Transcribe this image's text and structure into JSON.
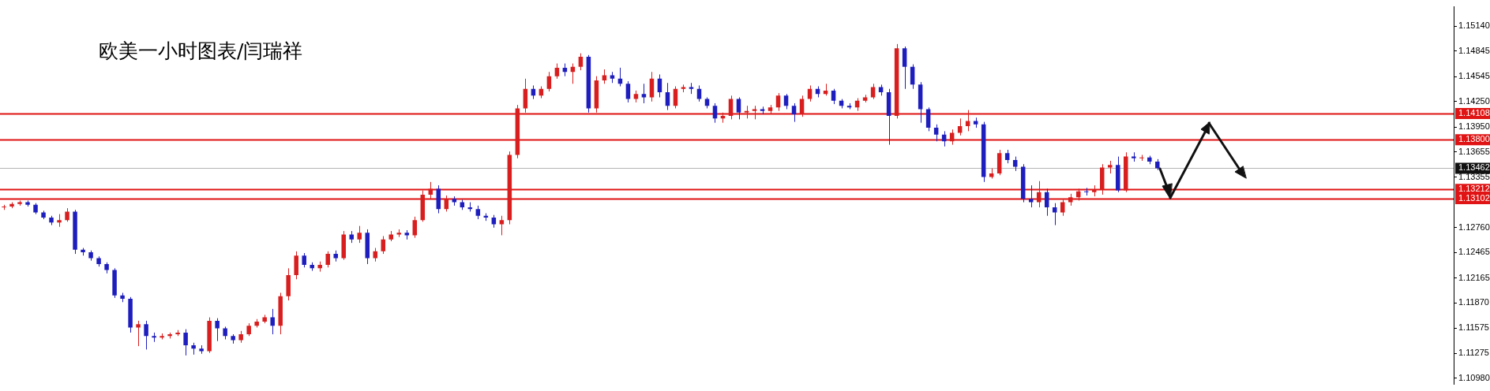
{
  "chart_data": {
    "type": "candlestick",
    "title": "欧美一小时图表/闫瑞祥",
    "categories": [
      null,
      null,
      null,
      null,
      null,
      null,
      null,
      null,
      null,
      null,
      null,
      null,
      null,
      null,
      null,
      null,
      null,
      null,
      null,
      null,
      null,
      null,
      null,
      null,
      null,
      null,
      null,
      null,
      null,
      null,
      null,
      null,
      null,
      null,
      null,
      null,
      null,
      null,
      null,
      null,
      null,
      null,
      null,
      null,
      null,
      null,
      null,
      null,
      null,
      null,
      null,
      null,
      null,
      null,
      null,
      null,
      null,
      null,
      null,
      null,
      null,
      null,
      null,
      null,
      null,
      null,
      null,
      null,
      null,
      null,
      null,
      null,
      null,
      null,
      null,
      null,
      null,
      null,
      null,
      null,
      null,
      null,
      null,
      null,
      null,
      null,
      null,
      null,
      null,
      null,
      null,
      null,
      null,
      null,
      null,
      null,
      null,
      null,
      null,
      null,
      null,
      null,
      null,
      null,
      null,
      null,
      null,
      null,
      null,
      null,
      null,
      null,
      null,
      null,
      null,
      null,
      null,
      null,
      null,
      null,
      null,
      null,
      null,
      null,
      null,
      null,
      null,
      null,
      null,
      null,
      null,
      null,
      null,
      null,
      null,
      null,
      null,
      null,
      null,
      null,
      null,
      null,
      null,
      null,
      null,
      null,
      null,
      null,
      null,
      null,
      null,
      null,
      null,
      null,
      null,
      null,
      null,
      null,
      null,
      null,
      null,
      null,
      null,
      null,
      null,
      null,
      null,
      null,
      null,
      null,
      null,
      null,
      null,
      null,
      null,
      null,
      null,
      null,
      null,
      null,
      null,
      null,
      null,
      null
    ],
    "ohlc": [
      [
        1.13,
        1.1303,
        1.1297,
        1.1301
      ],
      [
        1.1301,
        1.1306,
        1.1299,
        1.1304
      ],
      [
        1.1304,
        1.1308,
        1.1302,
        1.1306
      ],
      [
        1.1306,
        1.1308,
        1.1301,
        1.1303
      ],
      [
        1.1303,
        1.1305,
        1.1292,
        1.1294
      ],
      [
        1.1294,
        1.1296,
        1.1286,
        1.1288
      ],
      [
        1.1288,
        1.129,
        1.1279,
        1.1282
      ],
      [
        1.1282,
        1.1292,
        1.1277,
        1.1285
      ],
      [
        1.1285,
        1.1299,
        1.1283,
        1.1295
      ],
      [
        1.1295,
        1.1297,
        1.1245,
        1.125
      ],
      [
        1.125,
        1.1252,
        1.1243,
        1.1247
      ],
      [
        1.1247,
        1.1249,
        1.1237,
        1.124
      ],
      [
        1.124,
        1.1242,
        1.123,
        1.1233
      ],
      [
        1.1233,
        1.1235,
        1.1222,
        1.1226
      ],
      [
        1.1226,
        1.1228,
        1.1193,
        1.1196
      ],
      [
        1.1196,
        1.1199,
        1.1188,
        1.1192
      ],
      [
        1.1192,
        1.1194,
        1.1152,
        1.1158
      ],
      [
        1.1158,
        1.1166,
        1.1136,
        1.1162
      ],
      [
        1.1162,
        1.1166,
        1.1132,
        1.1148
      ],
      [
        1.1148,
        1.1152,
        1.1141,
        1.1146
      ],
      [
        1.1146,
        1.1151,
        1.1144,
        1.1148
      ],
      [
        1.1148,
        1.1152,
        1.1145,
        1.115
      ],
      [
        1.115,
        1.1155,
        1.1148,
        1.1152
      ],
      [
        1.1152,
        1.1156,
        1.1125,
        1.1137
      ],
      [
        1.1137,
        1.114,
        1.1126,
        1.1133
      ],
      [
        1.1133,
        1.1137,
        1.1127,
        1.113
      ],
      [
        1.113,
        1.117,
        1.1128,
        1.1166
      ],
      [
        1.1166,
        1.1169,
        1.1142,
        1.1157
      ],
      [
        1.1157,
        1.1159,
        1.1144,
        1.1148
      ],
      [
        1.1148,
        1.115,
        1.1139,
        1.1143
      ],
      [
        1.1143,
        1.1154,
        1.114,
        1.115
      ],
      [
        1.115,
        1.1163,
        1.1148,
        1.116
      ],
      [
        1.116,
        1.1168,
        1.1158,
        1.1165
      ],
      [
        1.1165,
        1.1173,
        1.1163,
        1.117
      ],
      [
        1.117,
        1.118,
        1.115,
        1.116
      ],
      [
        1.116,
        1.1199,
        1.115,
        1.1195
      ],
      [
        1.1195,
        1.1228,
        1.119,
        1.122
      ],
      [
        1.122,
        1.1248,
        1.1215,
        1.1243
      ],
      [
        1.1243,
        1.1246,
        1.1229,
        1.1232
      ],
      [
        1.1232,
        1.1235,
        1.1225,
        1.1228
      ],
      [
        1.1228,
        1.1236,
        1.1224,
        1.1232
      ],
      [
        1.1232,
        1.1248,
        1.1229,
        1.1245
      ],
      [
        1.1245,
        1.1249,
        1.1236,
        1.124
      ],
      [
        1.124,
        1.1272,
        1.1238,
        1.1268
      ],
      [
        1.1268,
        1.1272,
        1.1258,
        1.1262
      ],
      [
        1.1262,
        1.1278,
        1.1258,
        1.127
      ],
      [
        1.127,
        1.1274,
        1.1233,
        1.124
      ],
      [
        1.124,
        1.1252,
        1.1236,
        1.1248
      ],
      [
        1.1248,
        1.1266,
        1.1245,
        1.1262
      ],
      [
        1.1262,
        1.1272,
        1.126,
        1.1268
      ],
      [
        1.1268,
        1.1274,
        1.1265,
        1.127
      ],
      [
        1.127,
        1.1273,
        1.1262,
        1.1267
      ],
      [
        1.1267,
        1.1289,
        1.1264,
        1.1285
      ],
      [
        1.1285,
        1.132,
        1.1283,
        1.1315
      ],
      [
        1.1315,
        1.133,
        1.131,
        1.1322
      ],
      [
        1.1322,
        1.1326,
        1.1293,
        1.1298
      ],
      [
        1.1298,
        1.1314,
        1.1295,
        1.131
      ],
      [
        1.131,
        1.1313,
        1.1302,
        1.1306
      ],
      [
        1.1306,
        1.1309,
        1.1297,
        1.13
      ],
      [
        1.13,
        1.1306,
        1.1295,
        1.1298
      ],
      [
        1.1298,
        1.1302,
        1.1286,
        1.129
      ],
      [
        1.129,
        1.1293,
        1.1284,
        1.1288
      ],
      [
        1.1288,
        1.1291,
        1.1276,
        1.128
      ],
      [
        1.128,
        1.129,
        1.1267,
        1.1285
      ],
      [
        1.1285,
        1.1366,
        1.128,
        1.1362
      ],
      [
        1.1362,
        1.1421,
        1.1358,
        1.1417
      ],
      [
        1.1417,
        1.1452,
        1.1412,
        1.144
      ],
      [
        1.144,
        1.1444,
        1.1428,
        1.1432
      ],
      [
        1.1432,
        1.1443,
        1.1429,
        1.144
      ],
      [
        1.144,
        1.146,
        1.1437,
        1.1455
      ],
      [
        1.1455,
        1.147,
        1.1452,
        1.1465
      ],
      [
        1.1465,
        1.147,
        1.1455,
        1.146
      ],
      [
        1.146,
        1.147,
        1.1446,
        1.1466
      ],
      [
        1.1466,
        1.1482,
        1.1462,
        1.1478
      ],
      [
        1.1478,
        1.148,
        1.1412,
        1.1417
      ],
      [
        1.1417,
        1.1455,
        1.1412,
        1.145
      ],
      [
        1.145,
        1.1463,
        1.1446,
        1.1456
      ],
      [
        1.1456,
        1.146,
        1.1447,
        1.1452
      ],
      [
        1.1452,
        1.1465,
        1.1443,
        1.1446
      ],
      [
        1.1446,
        1.1449,
        1.1424,
        1.1428
      ],
      [
        1.1428,
        1.1438,
        1.1424,
        1.1434
      ],
      [
        1.1434,
        1.1446,
        1.1423,
        1.143
      ],
      [
        1.143,
        1.146,
        1.1425,
        1.1452
      ],
      [
        1.1452,
        1.1457,
        1.143,
        1.1436
      ],
      [
        1.1436,
        1.1447,
        1.1415,
        1.142
      ],
      [
        1.142,
        1.1443,
        1.1417,
        1.144
      ],
      [
        1.144,
        1.1445,
        1.1436,
        1.1442
      ],
      [
        1.1442,
        1.1447,
        1.1434,
        1.144
      ],
      [
        1.144,
        1.1444,
        1.1425,
        1.1428
      ],
      [
        1.1428,
        1.143,
        1.1417,
        1.142
      ],
      [
        1.142,
        1.1423,
        1.14,
        1.1405
      ],
      [
        1.1405,
        1.1412,
        1.14,
        1.1408
      ],
      [
        1.1408,
        1.1432,
        1.1404,
        1.1428
      ],
      [
        1.1428,
        1.143,
        1.1404,
        1.1412
      ],
      [
        1.1412,
        1.142,
        1.1405,
        1.1414
      ],
      [
        1.1414,
        1.142,
        1.1404,
        1.1416
      ],
      [
        1.1416,
        1.1419,
        1.141,
        1.1414
      ],
      [
        1.1414,
        1.1421,
        1.141,
        1.1418
      ],
      [
        1.1418,
        1.1435,
        1.1414,
        1.1432
      ],
      [
        1.1432,
        1.1434,
        1.1416,
        1.142
      ],
      [
        1.142,
        1.1423,
        1.1401,
        1.141
      ],
      [
        1.141,
        1.1432,
        1.1407,
        1.1428
      ],
      [
        1.1428,
        1.1444,
        1.1425,
        1.144
      ],
      [
        1.144,
        1.1443,
        1.143,
        1.1434
      ],
      [
        1.1434,
        1.1446,
        1.1432,
        1.1438
      ],
      [
        1.1438,
        1.144,
        1.1422,
        1.1426
      ],
      [
        1.1426,
        1.1428,
        1.1417,
        1.142
      ],
      [
        1.142,
        1.1423,
        1.1416,
        1.1418
      ],
      [
        1.1418,
        1.1429,
        1.1414,
        1.1426
      ],
      [
        1.1426,
        1.1433,
        1.1424,
        1.143
      ],
      [
        1.143,
        1.1446,
        1.1428,
        1.1442
      ],
      [
        1.1442,
        1.1445,
        1.1432,
        1.1436
      ],
      [
        1.1436,
        1.144,
        1.1374,
        1.1408
      ],
      [
        1.1408,
        1.1493,
        1.1405,
        1.1488
      ],
      [
        1.1488,
        1.149,
        1.144,
        1.1466
      ],
      [
        1.1466,
        1.1469,
        1.144,
        1.1445
      ],
      [
        1.1445,
        1.1448,
        1.14,
        1.1416
      ],
      [
        1.1416,
        1.1418,
        1.139,
        1.1394
      ],
      [
        1.1394,
        1.1398,
        1.1378,
        1.1386
      ],
      [
        1.1386,
        1.139,
        1.1372,
        1.1378
      ],
      [
        1.1378,
        1.1392,
        1.1374,
        1.1388
      ],
      [
        1.1388,
        1.1405,
        1.1385,
        1.1396
      ],
      [
        1.1396,
        1.1415,
        1.139,
        1.1402
      ],
      [
        1.1402,
        1.1406,
        1.1394,
        1.1398
      ],
      [
        1.1398,
        1.1401,
        1.133,
        1.1336
      ],
      [
        1.1336,
        1.1346,
        1.1334,
        1.134
      ],
      [
        1.134,
        1.1368,
        1.1338,
        1.1364
      ],
      [
        1.1364,
        1.1368,
        1.1352,
        1.1356
      ],
      [
        1.1356,
        1.136,
        1.1343,
        1.1348
      ],
      [
        1.1348,
        1.1351,
        1.1306,
        1.131
      ],
      [
        1.131,
        1.1326,
        1.13,
        1.1306
      ],
      [
        1.1306,
        1.1331,
        1.13,
        1.1318
      ],
      [
        1.1318,
        1.1322,
        1.129,
        1.13
      ],
      [
        1.13,
        1.1305,
        1.1279,
        1.1294
      ],
      [
        1.1294,
        1.1309,
        1.129,
        1.1306
      ],
      [
        1.1306,
        1.1316,
        1.1302,
        1.1312
      ],
      [
        1.1312,
        1.1322,
        1.1308,
        1.1319
      ],
      [
        1.1319,
        1.1323,
        1.1314,
        1.1318
      ],
      [
        1.1318,
        1.1326,
        1.1313,
        1.1321
      ],
      [
        1.1321,
        1.1351,
        1.1315,
        1.1347
      ],
      [
        1.1347,
        1.1355,
        1.134,
        1.135
      ],
      [
        1.135,
        1.136,
        1.1318,
        1.132
      ],
      [
        1.132,
        1.1365,
        1.1318,
        1.136
      ],
      [
        1.136,
        1.1365,
        1.1354,
        1.1358
      ],
      [
        1.1358,
        1.1362,
        1.1355,
        1.1359
      ],
      [
        1.1359,
        1.1361,
        1.1351,
        1.1354
      ],
      [
        1.1354,
        1.1357,
        1.1344,
        1.13462
      ],
      null,
      null,
      null,
      null,
      null,
      null,
      null,
      null,
      null,
      null,
      null,
      null,
      null,
      null,
      null,
      null,
      null,
      null,
      null,
      null,
      null,
      null,
      null,
      null,
      null,
      null,
      null,
      null,
      null,
      null,
      null,
      null,
      null,
      null,
      null,
      null,
      null
    ],
    "colors": [
      "#d81e1e",
      "#d81e1e",
      "#d81e1e",
      "#1e1ebe",
      "#1e1ebe",
      "#1e1ebe",
      "#1e1ebe",
      "#d81e1e",
      "#d81e1e",
      "#1e1ebe",
      "#1e1ebe",
      "#1e1ebe",
      "#1e1ebe",
      "#1e1ebe",
      "#1e1ebe",
      "#1e1ebe",
      "#1e1ebe",
      "#d81e1e",
      "#1e1ebe",
      "#1e1ebe",
      "#d81e1e",
      "#d81e1e",
      "#d81e1e",
      "#1e1ebe",
      "#1e1ebe",
      "#1e1ebe",
      "#d81e1e",
      "#1e1ebe",
      "#1e1ebe",
      "#1e1ebe",
      "#d81e1e",
      "#d81e1e",
      "#d81e1e",
      "#d81e1e",
      "#1e1ebe",
      "#d81e1e",
      "#d81e1e",
      "#d81e1e",
      "#1e1ebe",
      "#1e1ebe",
      "#d81e1e",
      "#d81e1e",
      "#1e1ebe",
      "#d81e1e",
      "#1e1ebe",
      "#d81e1e",
      "#1e1ebe",
      "#d81e1e",
      "#d81e1e",
      "#d81e1e",
      "#d81e1e",
      "#1e1ebe",
      "#d81e1e",
      "#d81e1e",
      "#d81e1e",
      "#1e1ebe",
      "#d81e1e",
      "#1e1ebe",
      "#1e1ebe",
      "#1e1ebe",
      "#1e1ebe",
      "#1e1ebe",
      "#1e1ebe",
      "#d81e1e",
      "#d81e1e",
      "#d81e1e",
      "#d81e1e",
      "#1e1ebe",
      "#d81e1e",
      "#d81e1e",
      "#d81e1e",
      "#1e1ebe",
      "#d81e1e",
      "#d81e1e",
      "#1e1ebe",
      "#d81e1e",
      "#d81e1e",
      "#1e1ebe",
      "#1e1ebe",
      "#1e1ebe",
      "#d81e1e",
      "#1e1ebe",
      "#d81e1e",
      "#1e1ebe",
      "#1e1ebe",
      "#d81e1e",
      "#d81e1e",
      "#1e1ebe",
      "#1e1ebe",
      "#1e1ebe",
      "#1e1ebe",
      "#d81e1e",
      "#d81e1e",
      "#1e1ebe",
      "#d81e1e",
      "#d81e1e",
      "#1e1ebe",
      "#d81e1e",
      "#d81e1e",
      "#1e1ebe",
      "#1e1ebe",
      "#d81e1e",
      "#d81e1e",
      "#1e1ebe",
      "#d81e1e",
      "#1e1ebe",
      "#1e1ebe",
      "#1e1ebe",
      "#d81e1e",
      "#d81e1e",
      "#d81e1e",
      "#1e1ebe",
      "#1e1ebe",
      "#d81e1e",
      "#1e1ebe",
      "#1e1ebe",
      "#1e1ebe",
      "#1e1ebe",
      "#1e1ebe",
      "#1e1ebe",
      "#d81e1e",
      "#d81e1e",
      "#d81e1e",
      "#1e1ebe",
      "#1e1ebe",
      "#d81e1e",
      "#d81e1e",
      "#1e1ebe",
      "#1e1ebe",
      "#1e1ebe",
      "#1e1ebe",
      "#d81e1e",
      "#1e1ebe",
      "#1e1ebe",
      "#d81e1e",
      "#d81e1e",
      "#d81e1e",
      "#1e1ebe",
      "#d81e1e",
      "#d81e1e",
      "#d81e1e",
      "#1e1ebe",
      "#d81e1e",
      "#1e1ebe",
      "#d81e1e",
      "#1e1ebe",
      "#1e1ebe",
      null,
      null,
      null,
      null,
      null,
      null,
      null,
      null,
      null,
      null,
      null,
      null,
      null,
      null,
      null,
      null,
      null,
      null,
      null,
      null,
      null,
      null,
      null,
      null,
      null,
      null,
      null,
      null,
      null,
      null,
      null,
      null,
      null,
      null,
      null,
      null,
      null
    ],
    "ylim": [
      1.1091,
      1.1537
    ],
    "yticks": [
      {
        "value": 1.1514,
        "label": "1.15140"
      },
      1.14845,
      1.14545,
      {
        "value": 1.1425,
        "label": "1.14250"
      },
      {
        "value": 1.1395,
        "label": "1.13950"
      },
      1.13655,
      1.13355,
      {
        "value": 1.1276,
        "label": "1.12760"
      },
      1.12465,
      1.12165,
      {
        "value": 1.1187,
        "label": "1.11870"
      },
      1.11575,
      1.11275,
      {
        "value": 1.1098,
        "label": "1.10980"
      }
    ],
    "ref_lines": [
      {
        "axis": "y",
        "value": 1.14108,
        "label": "1.14108",
        "color": "#e01414"
      },
      {
        "axis": "y",
        "value": 1.138,
        "label": "1.13800",
        "color": "#e01414"
      },
      {
        "axis": "y",
        "value": 1.13462,
        "label": "1.13462",
        "color": "#b4b4b4"
      },
      {
        "axis": "y",
        "value": 1.13212,
        "label": "1.13212",
        "color": "#e01414"
      },
      {
        "axis": "y",
        "value": 1.13102,
        "label": "1.13102",
        "color": "#e01414"
      }
    ],
    "tick_labels": "y",
    "grid": false,
    "legend": false
  }
}
